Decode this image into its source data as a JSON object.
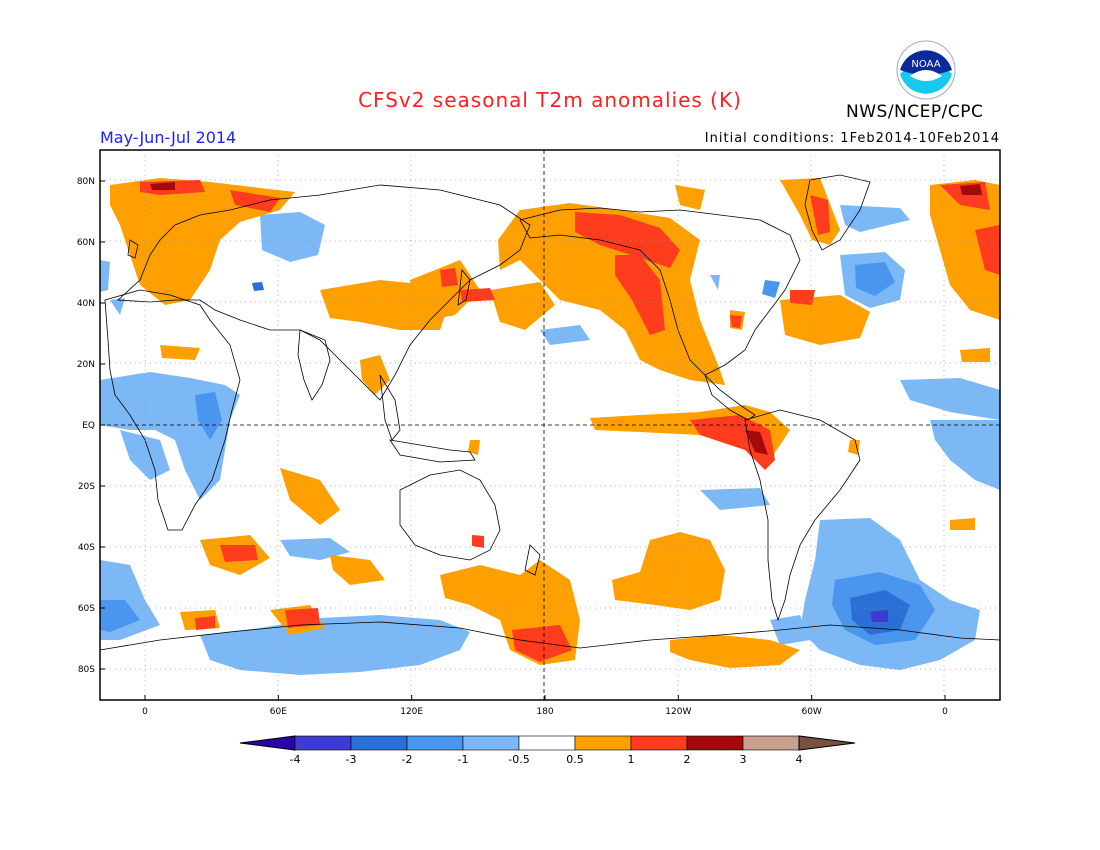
{
  "title": "CFSv2 seasonal T2m anomalies (K)",
  "period": "May-Jun-Jul 2014",
  "agency": "NWS/NCEP/CPC",
  "initial_conditions": "Initial conditions: 1Feb2014-10Feb2014",
  "logo_text": "NOAA",
  "lat_ticks": [
    {
      "label": "80N",
      "lat": 80
    },
    {
      "label": "60N",
      "lat": 60
    },
    {
      "label": "40N",
      "lat": 40
    },
    {
      "label": "20N",
      "lat": 20
    },
    {
      "label": "EQ",
      "lat": 0
    },
    {
      "label": "20S",
      "lat": -20
    },
    {
      "label": "40S",
      "lat": -40
    },
    {
      "label": "60S",
      "lat": -60
    },
    {
      "label": "80S",
      "lat": -80
    }
  ],
  "lon_ticks": [
    {
      "label": "0",
      "lon": 0
    },
    {
      "label": "60E",
      "lon": 60
    },
    {
      "label": "120E",
      "lon": 120
    },
    {
      "label": "180",
      "lon": 180
    },
    {
      "label": "120W",
      "lon": 240
    },
    {
      "label": "60W",
      "lon": 300
    },
    {
      "label": "0",
      "lon": 360
    }
  ],
  "colorbar": {
    "labels": [
      "-4",
      "-3",
      "-2",
      "-1",
      "-0.5",
      "0.5",
      "1",
      "2",
      "3",
      "4"
    ],
    "colors": [
      "#2a05a8",
      "#3c3cd2",
      "#2b6fd6",
      "#4a95ee",
      "#7cb8f5",
      "#ffffff",
      "#ffa000",
      "#ff3c1e",
      "#a50a0a",
      "#c8a090",
      "#7a5040"
    ]
  },
  "colors": {
    "warm1": "#ffa000",
    "warm2": "#ff3c1e",
    "warm3": "#a50a0a",
    "cool1": "#7cb8f5",
    "cool2": "#4a95ee",
    "cool3": "#2b6fd6",
    "cool4": "#3c3cd2",
    "title": "#ff2020",
    "period": "#2020ff"
  }
}
